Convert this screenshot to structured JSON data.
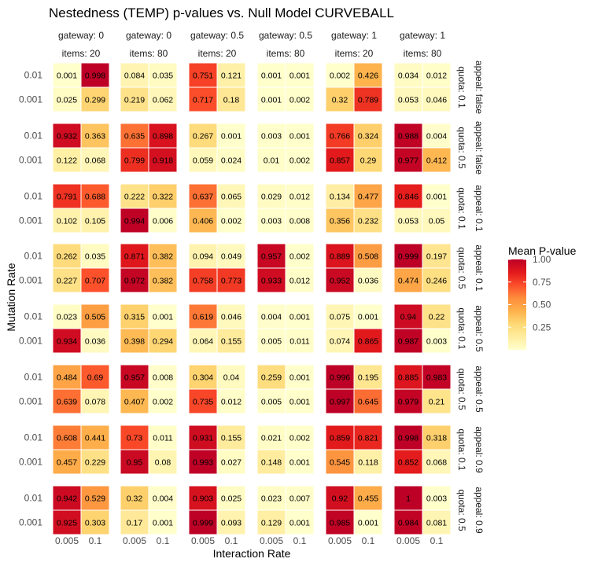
{
  "chart_data": {
    "type": "heatmap",
    "title": "Nestedness (TEMP) p-values vs. Null Model CURVEBALL",
    "xlabel": "Interaction Rate",
    "ylabel": "Mutation Rate",
    "x_categories": [
      "0.005",
      "0.1"
    ],
    "y_categories": [
      "0.01",
      "0.001"
    ],
    "columns": [
      {
        "gateway": "gateway: 0",
        "items": "items: 20"
      },
      {
        "gateway": "gateway: 0",
        "items": "items: 80"
      },
      {
        "gateway": "gateway: 0.5",
        "items": "items: 20"
      },
      {
        "gateway": "gateway: 0.5",
        "items": "items: 80"
      },
      {
        "gateway": "gateway: 1",
        "items": "items: 20"
      },
      {
        "gateway": "gateway: 1",
        "items": "items: 80"
      }
    ],
    "rows": [
      {
        "quota": "quota: 0.1",
        "appeal": "appeal: false"
      },
      {
        "quota": "quota: 0.5",
        "appeal": "appeal: false"
      },
      {
        "quota": "quota: 0.1",
        "appeal": "appeal: 0.1"
      },
      {
        "quota": "quota: 0.5",
        "appeal": "appeal: 0.1"
      },
      {
        "quota": "quota: 0.1",
        "appeal": "appeal: 0.5"
      },
      {
        "quota": "quota: 0.5",
        "appeal": "appeal: 0.5"
      },
      {
        "quota": "quota: 0.1",
        "appeal": "appeal: 0.9"
      },
      {
        "quota": "quota: 0.5",
        "appeal": "appeal: 0.9"
      }
    ],
    "panels": [
      [
        [
          [
            "0.001",
            "0.998"
          ],
          [
            "0.025",
            "0.299"
          ]
        ],
        [
          [
            "0.084",
            "0.035"
          ],
          [
            "0.219",
            "0.062"
          ]
        ],
        [
          [
            "0.751",
            "0.121"
          ],
          [
            "0.717",
            "0.18"
          ]
        ],
        [
          [
            "0.001",
            "0.001"
          ],
          [
            "0.001",
            "0.002"
          ]
        ],
        [
          [
            "0.002",
            "0.426"
          ],
          [
            "0.32",
            "0.789"
          ]
        ],
        [
          [
            "0.034",
            "0.012"
          ],
          [
            "0.053",
            "0.046"
          ]
        ]
      ],
      [
        [
          [
            "0.932",
            "0.363"
          ],
          [
            "0.122",
            "0.068"
          ]
        ],
        [
          [
            "0.635",
            "0.898"
          ],
          [
            "0.799",
            "0.918"
          ]
        ],
        [
          [
            "0.267",
            "0.001"
          ],
          [
            "0.059",
            "0.024"
          ]
        ],
        [
          [
            "0.003",
            "0.001"
          ],
          [
            "0.01",
            "0.002"
          ]
        ],
        [
          [
            "0.766",
            "0.324"
          ],
          [
            "0.857",
            "0.29"
          ]
        ],
        [
          [
            "0.988",
            "0.004"
          ],
          [
            "0.977",
            "0.412"
          ]
        ]
      ],
      [
        [
          [
            "0.791",
            "0.688"
          ],
          [
            "0.102",
            "0.105"
          ]
        ],
        [
          [
            "0.222",
            "0.322"
          ],
          [
            "0.994",
            "0.006"
          ]
        ],
        [
          [
            "0.637",
            "0.065"
          ],
          [
            "0.406",
            "0.002"
          ]
        ],
        [
          [
            "0.029",
            "0.012"
          ],
          [
            "0.003",
            "0.008"
          ]
        ],
        [
          [
            "0.134",
            "0.477"
          ],
          [
            "0.356",
            "0.232"
          ]
        ],
        [
          [
            "0.846",
            "0.001"
          ],
          [
            "0.053",
            "0.05"
          ]
        ]
      ],
      [
        [
          [
            "0.262",
            "0.035"
          ],
          [
            "0.227",
            "0.707"
          ]
        ],
        [
          [
            "0.871",
            "0.382"
          ],
          [
            "0.972",
            "0.382"
          ]
        ],
        [
          [
            "0.094",
            "0.049"
          ],
          [
            "0.758",
            "0.773"
          ]
        ],
        [
          [
            "0.957",
            "0.002"
          ],
          [
            "0.933",
            "0.012"
          ]
        ],
        [
          [
            "0.889",
            "0.508"
          ],
          [
            "0.952",
            "0.036"
          ]
        ],
        [
          [
            "0.999",
            "0.197"
          ],
          [
            "0.474",
            "0.246"
          ]
        ]
      ],
      [
        [
          [
            "0.023",
            "0.505"
          ],
          [
            "0.934",
            "0.036"
          ]
        ],
        [
          [
            "0.315",
            "0.001"
          ],
          [
            "0.398",
            "0.294"
          ]
        ],
        [
          [
            "0.619",
            "0.046"
          ],
          [
            "0.064",
            "0.155"
          ]
        ],
        [
          [
            "0.004",
            "0.001"
          ],
          [
            "0.005",
            "0.011"
          ]
        ],
        [
          [
            "0.075",
            "0.001"
          ],
          [
            "0.074",
            "0.865"
          ]
        ],
        [
          [
            "0.94",
            "0.22"
          ],
          [
            "0.987",
            "0.003"
          ]
        ]
      ],
      [
        [
          [
            "0.484",
            "0.69"
          ],
          [
            "0.639",
            "0.078"
          ]
        ],
        [
          [
            "0.957",
            "0.008"
          ],
          [
            "0.407",
            "0.002"
          ]
        ],
        [
          [
            "0.304",
            "0.04"
          ],
          [
            "0.735",
            "0.012"
          ]
        ],
        [
          [
            "0.259",
            "0.001"
          ],
          [
            "0.005",
            "0.001"
          ]
        ],
        [
          [
            "0.996",
            "0.195"
          ],
          [
            "0.997",
            "0.645"
          ]
        ],
        [
          [
            "0.885",
            "0.983"
          ],
          [
            "0.979",
            "0.21"
          ]
        ]
      ],
      [
        [
          [
            "0.608",
            "0.441"
          ],
          [
            "0.457",
            "0.229"
          ]
        ],
        [
          [
            "0.73",
            "0.011"
          ],
          [
            "0.95",
            "0.08"
          ]
        ],
        [
          [
            "0.931",
            "0.155"
          ],
          [
            "0.993",
            "0.027"
          ]
        ],
        [
          [
            "0.021",
            "0.002"
          ],
          [
            "0.148",
            "0.001"
          ]
        ],
        [
          [
            "0.859",
            "0.821"
          ],
          [
            "0.545",
            "0.118"
          ]
        ],
        [
          [
            "0.998",
            "0.318"
          ],
          [
            "0.852",
            "0.068"
          ]
        ]
      ],
      [
        [
          [
            "0.942",
            "0.529"
          ],
          [
            "0.925",
            "0.303"
          ]
        ],
        [
          [
            "0.32",
            "0.004"
          ],
          [
            "0.17",
            "0.001"
          ]
        ],
        [
          [
            "0.903",
            "0.025"
          ],
          [
            "0.999",
            "0.093"
          ]
        ],
        [
          [
            "0.023",
            "0.007"
          ],
          [
            "0.129",
            "0.001"
          ]
        ],
        [
          [
            "0.92",
            "0.455"
          ],
          [
            "0.985",
            "0.001"
          ]
        ],
        [
          [
            "1",
            "0.003"
          ],
          [
            "0.984",
            "0.081"
          ]
        ]
      ]
    ],
    "legend": {
      "title": "Mean P-value",
      "ticks": [
        "1.00",
        "0.75",
        "0.50",
        "0.25"
      ],
      "range": [
        0,
        1
      ],
      "colors": [
        "#ffffcc",
        "#ffeda0",
        "#fed976",
        "#feb24c",
        "#fd8d3c",
        "#fc4e2a",
        "#e31a1c",
        "#bd0026"
      ],
      "position": "right"
    }
  }
}
